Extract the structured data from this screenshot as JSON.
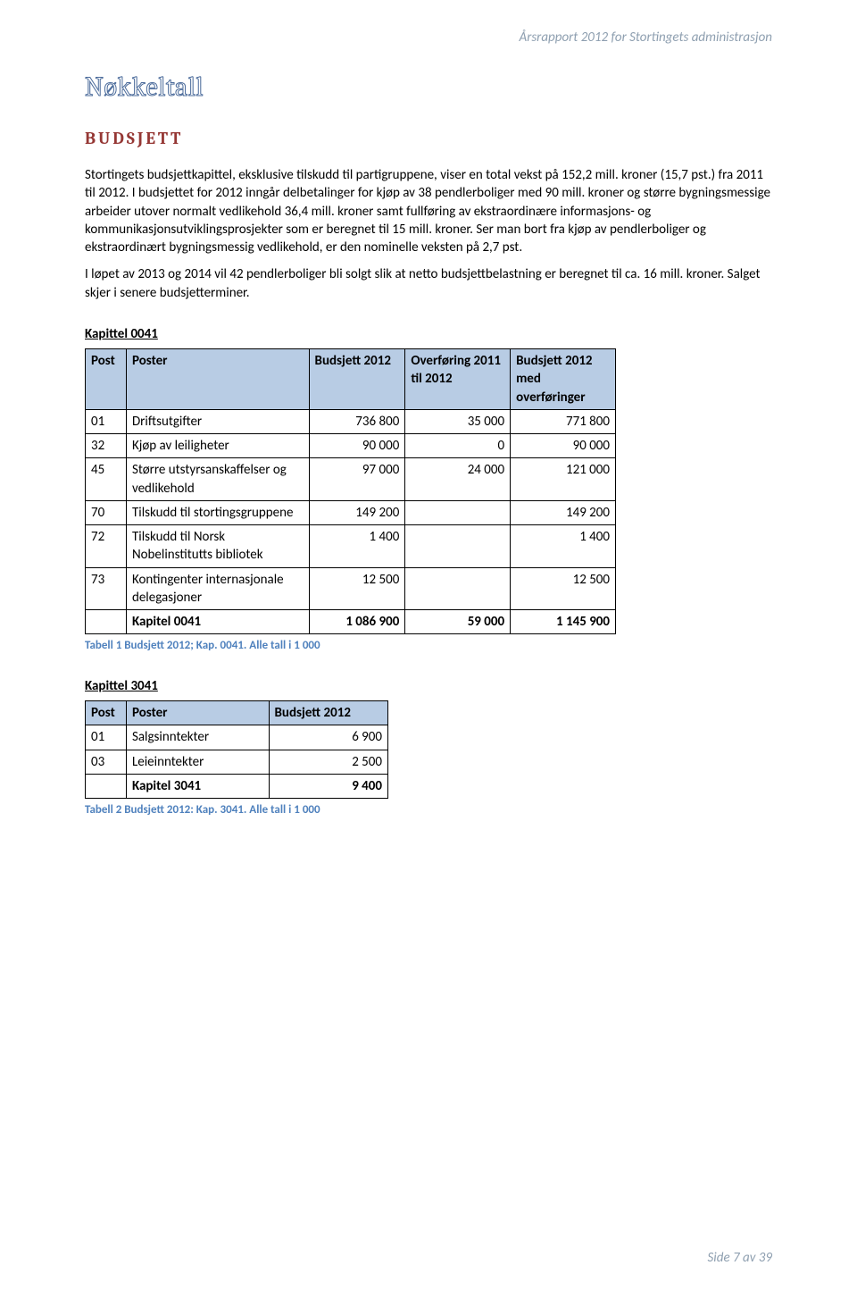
{
  "header": {
    "right": "Årsrapport 2012 for Stortingets administrasjon"
  },
  "title": "Nøkkeltall",
  "section": "BUDSJETT",
  "para1": "Stortingets budsjettkapittel, eksklusive tilskudd til partigruppene, viser en total vekst på 152,2 mill. kroner (15,7 pst.) fra 2011 til 2012. I budsjettet for 2012 inngår delbetalinger for kjøp av 38 pendlerboliger med 90 mill. kroner og større bygningsmessige arbeider utover normalt vedlikehold 36,4 mill. kroner samt fullføring av ekstraordinære informasjons- og kommunikasjonsutviklingsprosjekter som er beregnet til 15 mill. kroner. Ser man bort fra kjøp av pendlerboliger og ekstraordinært bygningsmessig vedlikehold, er den nominelle veksten på 2,7 pst.",
  "para2": "I løpet av 2013 og 2014 vil 42 pendlerboliger bli solgt slik at netto budsjettbelastning er beregnet til ca. 16 mill. kroner. Salget skjer i senere budsjetterminer.",
  "table1": {
    "title": "Kapittel 0041",
    "columns": [
      "Post",
      "Poster",
      "Budsjett 2012",
      "Overføring 2011 til 2012",
      "Budsjett 2012 med overføringer"
    ],
    "rows": [
      {
        "post": "01",
        "poster": "Driftsutgifter",
        "c3": "736 800",
        "c4": "35 000",
        "c5": "771 800"
      },
      {
        "post": "32",
        "poster": "Kjøp av leiligheter",
        "c3": "90 000",
        "c4": "0",
        "c5": "90 000"
      },
      {
        "post": "45",
        "poster": "Større utstyrsanskaffelser og vedlikehold",
        "c3": "97 000",
        "c4": "24 000",
        "c5": "121 000"
      },
      {
        "post": "70",
        "poster": "Tilskudd til stortingsgruppene",
        "c3": "149 200",
        "c4": "",
        "c5": "149 200"
      },
      {
        "post": "72",
        "poster": "Tilskudd til Norsk Nobelinstitutts bibliotek",
        "c3": "1 400",
        "c4": "",
        "c5": "1 400"
      },
      {
        "post": "73",
        "poster": "Kontingenter internasjonale delegasjoner",
        "c3": "12 500",
        "c4": "",
        "c5": "12 500"
      }
    ],
    "total": {
      "post": "",
      "poster": "Kapitel 0041",
      "c3": "1 086 900",
      "c4": "59 000",
      "c5": "1 145 900"
    },
    "caption": "Tabell 1 Budsjett 2012; Kap. 0041. Alle tall i 1 000"
  },
  "table2": {
    "title": "Kapittel 3041",
    "columns": [
      "Post",
      "Poster",
      "Budsjett 2012"
    ],
    "rows": [
      {
        "post": "01",
        "poster": "Salgsinntekter",
        "c3": "6 900"
      },
      {
        "post": "03",
        "poster": "Leieinntekter",
        "c3": "2 500"
      }
    ],
    "total": {
      "post": "",
      "poster": "Kapitel 3041",
      "c3": "9 400"
    },
    "caption": "Tabell 2 Budsjett 2012: Kap. 3041. Alle tall i 1 000"
  },
  "footer": {
    "right": "Side 7 av 39"
  }
}
